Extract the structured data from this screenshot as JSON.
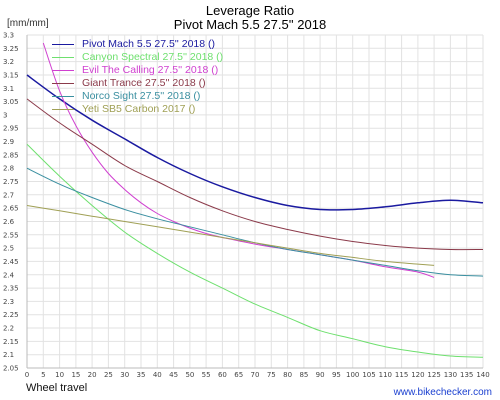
{
  "chart_data": {
    "type": "line",
    "title": "Leverage Ratio",
    "subtitle": "Pivot Mach 5.5 27.5'' 2018",
    "ylabel": "[mm/mm]",
    "xlabel": "Wheel travel",
    "credit": "www.bikechecker.com",
    "xlim": [
      0,
      140
    ],
    "ylim": [
      2.05,
      3.3
    ],
    "x_ticks": [
      0,
      5,
      10,
      15,
      20,
      25,
      30,
      35,
      40,
      45,
      50,
      55,
      60,
      65,
      70,
      75,
      80,
      85,
      90,
      95,
      100,
      105,
      110,
      115,
      120,
      125,
      130,
      135,
      140
    ],
    "y_ticks": [
      2.05,
      2.1,
      2.15,
      2.2,
      2.25,
      2.3,
      2.35,
      2.4,
      2.45,
      2.5,
      2.55,
      2.6,
      2.65,
      2.7,
      2.75,
      2.8,
      2.85,
      2.9,
      2.95,
      3.0,
      3.05,
      3.1,
      3.15,
      3.2,
      3.25,
      3.3
    ],
    "grid": true,
    "legend_position": "top-left",
    "series": [
      {
        "name": "Pivot Mach 5.5 27.5'' 2018 ()",
        "color": "#1a1aa0",
        "width": 1.5,
        "x": [
          0,
          10,
          20,
          30,
          40,
          50,
          60,
          70,
          80,
          90,
          100,
          110,
          120,
          130,
          140
        ],
        "y": [
          3.15,
          3.06,
          2.98,
          2.91,
          2.84,
          2.78,
          2.73,
          2.69,
          2.66,
          2.645,
          2.645,
          2.655,
          2.67,
          2.68,
          2.67
        ]
      },
      {
        "name": "Canyon Spectral 27.5'' 2018 ()",
        "color": "#6ee06e",
        "width": 1,
        "x": [
          0,
          10,
          20,
          30,
          40,
          50,
          60,
          70,
          80,
          90,
          100,
          110,
          120,
          130,
          140
        ],
        "y": [
          2.89,
          2.77,
          2.66,
          2.56,
          2.48,
          2.41,
          2.35,
          2.29,
          2.24,
          2.19,
          2.16,
          2.13,
          2.11,
          2.095,
          2.09
        ]
      },
      {
        "name": "Evil The Calling 27.5'' 2018 ()",
        "color": "#d040d0",
        "width": 1,
        "x": [
          5,
          10,
          15,
          20,
          25,
          30,
          35,
          40,
          45,
          50,
          55,
          60,
          70,
          80,
          90,
          100,
          110,
          120,
          125
        ],
        "y": [
          3.27,
          3.09,
          2.96,
          2.86,
          2.78,
          2.72,
          2.67,
          2.63,
          2.6,
          2.575,
          2.555,
          2.54,
          2.515,
          2.495,
          2.475,
          2.455,
          2.43,
          2.41,
          2.39
        ]
      },
      {
        "name": "Giant Trance 27.5'' 2018 ()",
        "color": "#8b3a4a",
        "width": 1,
        "x": [
          0,
          10,
          20,
          30,
          40,
          50,
          60,
          70,
          80,
          90,
          100,
          110,
          120,
          130,
          140
        ],
        "y": [
          3.06,
          2.97,
          2.89,
          2.81,
          2.75,
          2.69,
          2.64,
          2.6,
          2.57,
          2.545,
          2.525,
          2.51,
          2.5,
          2.495,
          2.495
        ]
      },
      {
        "name": "Norco Sight 27.5'' 2018 ()",
        "color": "#3a8fa0",
        "width": 1,
        "x": [
          0,
          10,
          20,
          30,
          40,
          50,
          60,
          70,
          80,
          90,
          100,
          110,
          120,
          130,
          140
        ],
        "y": [
          2.8,
          2.74,
          2.69,
          2.645,
          2.61,
          2.58,
          2.55,
          2.52,
          2.495,
          2.475,
          2.455,
          2.435,
          2.415,
          2.4,
          2.395
        ]
      },
      {
        "name": "Yeti SB5 Carbon 2017 ()",
        "color": "#a0a055",
        "width": 1,
        "x": [
          0,
          10,
          20,
          30,
          40,
          50,
          60,
          70,
          80,
          90,
          100,
          110,
          120,
          125
        ],
        "y": [
          2.66,
          2.64,
          2.62,
          2.6,
          2.58,
          2.56,
          2.54,
          2.52,
          2.5,
          2.48,
          2.465,
          2.45,
          2.44,
          2.435
        ]
      }
    ]
  }
}
